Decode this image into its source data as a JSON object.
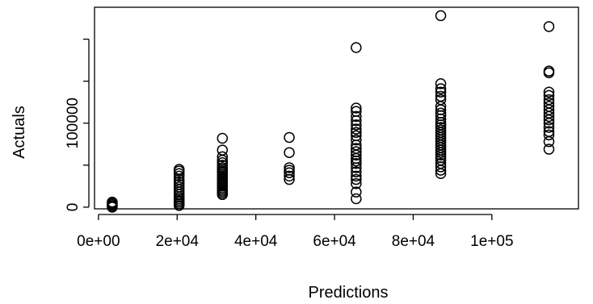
{
  "chart_data": {
    "type": "scatter",
    "title": "",
    "xlabel": "Predictions",
    "ylabel": "Actuals",
    "xlim": [
      -1000,
      122000
    ],
    "ylim": [
      -2000,
      238000
    ],
    "grid": false,
    "x_ticks": [
      {
        "value": 0,
        "label": "0e+00"
      },
      {
        "value": 20000,
        "label": "2e+04"
      },
      {
        "value": 40000,
        "label": "4e+04"
      },
      {
        "value": 60000,
        "label": "6e+04"
      },
      {
        "value": 80000,
        "label": "8e+04"
      },
      {
        "value": 100000,
        "label": "1e+05"
      }
    ],
    "y_ticks": [
      {
        "value": 0,
        "label": "0"
      },
      {
        "value": 50000,
        "label": ""
      },
      {
        "value": 100000,
        "label": "100000"
      },
      {
        "value": 150000,
        "label": ""
      },
      {
        "value": 200000,
        "label": ""
      }
    ],
    "series": [
      {
        "marker": "open-circle",
        "color": "#000000",
        "points": [
          {
            "x": 3500,
            "y": 0
          },
          {
            "x": 3500,
            "y": 1500
          },
          {
            "x": 3500,
            "y": 3000
          },
          {
            "x": 3500,
            "y": 4500
          },
          {
            "x": 3500,
            "y": 6000
          },
          {
            "x": 20500,
            "y": 2000
          },
          {
            "x": 20500,
            "y": 4000
          },
          {
            "x": 20500,
            "y": 6000
          },
          {
            "x": 20500,
            "y": 8000
          },
          {
            "x": 20500,
            "y": 10000
          },
          {
            "x": 20500,
            "y": 12000
          },
          {
            "x": 20500,
            "y": 15000
          },
          {
            "x": 20500,
            "y": 18000
          },
          {
            "x": 20500,
            "y": 21000
          },
          {
            "x": 20500,
            "y": 24000
          },
          {
            "x": 20500,
            "y": 27000
          },
          {
            "x": 20500,
            "y": 30000
          },
          {
            "x": 20500,
            "y": 33000
          },
          {
            "x": 20500,
            "y": 37000
          },
          {
            "x": 20500,
            "y": 40000
          },
          {
            "x": 20500,
            "y": 43000
          },
          {
            "x": 20500,
            "y": 45000
          },
          {
            "x": 31500,
            "y": 15000
          },
          {
            "x": 31500,
            "y": 17000
          },
          {
            "x": 31500,
            "y": 19000
          },
          {
            "x": 31500,
            "y": 21000
          },
          {
            "x": 31500,
            "y": 23000
          },
          {
            "x": 31500,
            "y": 25000
          },
          {
            "x": 31500,
            "y": 27000
          },
          {
            "x": 31500,
            "y": 29000
          },
          {
            "x": 31500,
            "y": 31000
          },
          {
            "x": 31500,
            "y": 33000
          },
          {
            "x": 31500,
            "y": 35000
          },
          {
            "x": 31500,
            "y": 37000
          },
          {
            "x": 31500,
            "y": 39000
          },
          {
            "x": 31500,
            "y": 41000
          },
          {
            "x": 31500,
            "y": 43000
          },
          {
            "x": 31500,
            "y": 45000
          },
          {
            "x": 31500,
            "y": 47000
          },
          {
            "x": 31500,
            "y": 50000
          },
          {
            "x": 31500,
            "y": 53000
          },
          {
            "x": 31500,
            "y": 56000
          },
          {
            "x": 31500,
            "y": 60000
          },
          {
            "x": 31500,
            "y": 68000
          },
          {
            "x": 31500,
            "y": 82000
          },
          {
            "x": 48500,
            "y": 33000
          },
          {
            "x": 48500,
            "y": 37000
          },
          {
            "x": 48500,
            "y": 41000
          },
          {
            "x": 48500,
            "y": 44000
          },
          {
            "x": 48500,
            "y": 47000
          },
          {
            "x": 48500,
            "y": 65000
          },
          {
            "x": 48500,
            "y": 83000
          },
          {
            "x": 65500,
            "y": 10000
          },
          {
            "x": 65500,
            "y": 18000
          },
          {
            "x": 65500,
            "y": 28000
          },
          {
            "x": 65500,
            "y": 33000
          },
          {
            "x": 65500,
            "y": 37000
          },
          {
            "x": 65500,
            "y": 42000
          },
          {
            "x": 65500,
            "y": 47000
          },
          {
            "x": 65500,
            "y": 52000
          },
          {
            "x": 65500,
            "y": 55000
          },
          {
            "x": 65500,
            "y": 58000
          },
          {
            "x": 65500,
            "y": 62000
          },
          {
            "x": 65500,
            "y": 66000
          },
          {
            "x": 65500,
            "y": 70000
          },
          {
            "x": 65500,
            "y": 74000
          },
          {
            "x": 65500,
            "y": 80000
          },
          {
            "x": 65500,
            "y": 85000
          },
          {
            "x": 65500,
            "y": 89000
          },
          {
            "x": 65500,
            "y": 93000
          },
          {
            "x": 65500,
            "y": 98000
          },
          {
            "x": 65500,
            "y": 103000
          },
          {
            "x": 65500,
            "y": 108000
          },
          {
            "x": 65500,
            "y": 114000
          },
          {
            "x": 65500,
            "y": 118000
          },
          {
            "x": 65500,
            "y": 190000
          },
          {
            "x": 87000,
            "y": 40000
          },
          {
            "x": 87000,
            "y": 44000
          },
          {
            "x": 87000,
            "y": 48000
          },
          {
            "x": 87000,
            "y": 52000
          },
          {
            "x": 87000,
            "y": 56000
          },
          {
            "x": 87000,
            "y": 59000
          },
          {
            "x": 87000,
            "y": 62000
          },
          {
            "x": 87000,
            "y": 65000
          },
          {
            "x": 87000,
            "y": 68000
          },
          {
            "x": 87000,
            "y": 71000
          },
          {
            "x": 87000,
            "y": 74000
          },
          {
            "x": 87000,
            "y": 77000
          },
          {
            "x": 87000,
            "y": 80000
          },
          {
            "x": 87000,
            "y": 83000
          },
          {
            "x": 87000,
            "y": 86000
          },
          {
            "x": 87000,
            "y": 89000
          },
          {
            "x": 87000,
            "y": 92000
          },
          {
            "x": 87000,
            "y": 95000
          },
          {
            "x": 87000,
            "y": 98000
          },
          {
            "x": 87000,
            "y": 101000
          },
          {
            "x": 87000,
            "y": 105000
          },
          {
            "x": 87000,
            "y": 109000
          },
          {
            "x": 87000,
            "y": 112000
          },
          {
            "x": 87000,
            "y": 116000
          },
          {
            "x": 87000,
            "y": 120000
          },
          {
            "x": 87000,
            "y": 128000
          },
          {
            "x": 87000,
            "y": 132000
          },
          {
            "x": 87000,
            "y": 137000
          },
          {
            "x": 87000,
            "y": 141000
          },
          {
            "x": 87000,
            "y": 147000
          },
          {
            "x": 87000,
            "y": 228000
          },
          {
            "x": 114500,
            "y": 69000
          },
          {
            "x": 114500,
            "y": 78000
          },
          {
            "x": 114500,
            "y": 86000
          },
          {
            "x": 114500,
            "y": 90000
          },
          {
            "x": 114500,
            "y": 95000
          },
          {
            "x": 114500,
            "y": 100000
          },
          {
            "x": 114500,
            "y": 104000
          },
          {
            "x": 114500,
            "y": 108000
          },
          {
            "x": 114500,
            "y": 112000
          },
          {
            "x": 114500,
            "y": 116000
          },
          {
            "x": 114500,
            "y": 120000
          },
          {
            "x": 114500,
            "y": 124000
          },
          {
            "x": 114500,
            "y": 128000
          },
          {
            "x": 114500,
            "y": 133000
          },
          {
            "x": 114500,
            "y": 137000
          },
          {
            "x": 114500,
            "y": 160000
          },
          {
            "x": 114500,
            "y": 162000
          },
          {
            "x": 114500,
            "y": 215000
          }
        ]
      }
    ]
  }
}
